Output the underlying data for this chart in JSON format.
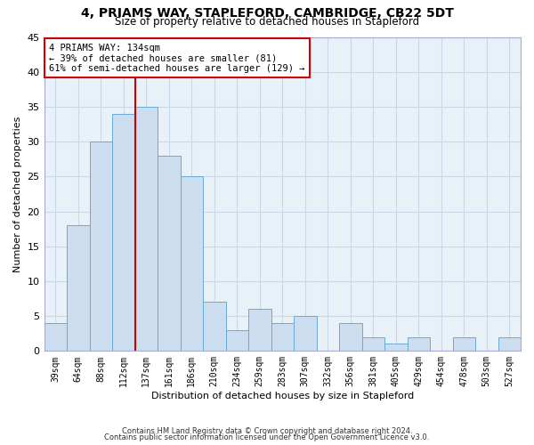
{
  "title": "4, PRIAMS WAY, STAPLEFORD, CAMBRIDGE, CB22 5DT",
  "subtitle": "Size of property relative to detached houses in Stapleford",
  "xlabel": "Distribution of detached houses by size in Stapleford",
  "ylabel": "Number of detached properties",
  "categories": [
    "39sqm",
    "64sqm",
    "88sqm",
    "112sqm",
    "137sqm",
    "161sqm",
    "186sqm",
    "210sqm",
    "234sqm",
    "259sqm",
    "283sqm",
    "307sqm",
    "332sqm",
    "356sqm",
    "381sqm",
    "405sqm",
    "429sqm",
    "454sqm",
    "478sqm",
    "503sqm",
    "527sqm"
  ],
  "values": [
    4,
    18,
    30,
    34,
    35,
    28,
    25,
    7,
    3,
    6,
    4,
    5,
    0,
    4,
    2,
    1,
    2,
    0,
    2,
    0,
    2
  ],
  "bar_color": "#ccddf0",
  "bar_edge_color": "#6aaad4",
  "vline_index": 3.5,
  "annotation_title": "4 PRIAMS WAY: 134sqm",
  "annotation_line1": "← 39% of detached houses are smaller (81)",
  "annotation_line2": "61% of semi-detached houses are larger (129) →",
  "annotation_box_facecolor": "#ffffff",
  "annotation_box_edgecolor": "#cc0000",
  "vline_color": "#cc0000",
  "ylim": [
    0,
    45
  ],
  "yticks": [
    0,
    5,
    10,
    15,
    20,
    25,
    30,
    35,
    40,
    45
  ],
  "plot_bgcolor": "#e8f0f8",
  "fig_bgcolor": "#ffffff",
  "grid_color": "#c8d8e8",
  "footer1": "Contains HM Land Registry data © Crown copyright and database right 2024.",
  "footer2": "Contains public sector information licensed under the Open Government Licence v3.0.",
  "title_fontsize": 10,
  "subtitle_fontsize": 8.5,
  "ylabel_fontsize": 8,
  "xlabel_fontsize": 8,
  "tick_fontsize": 7,
  "footer_fontsize": 6
}
